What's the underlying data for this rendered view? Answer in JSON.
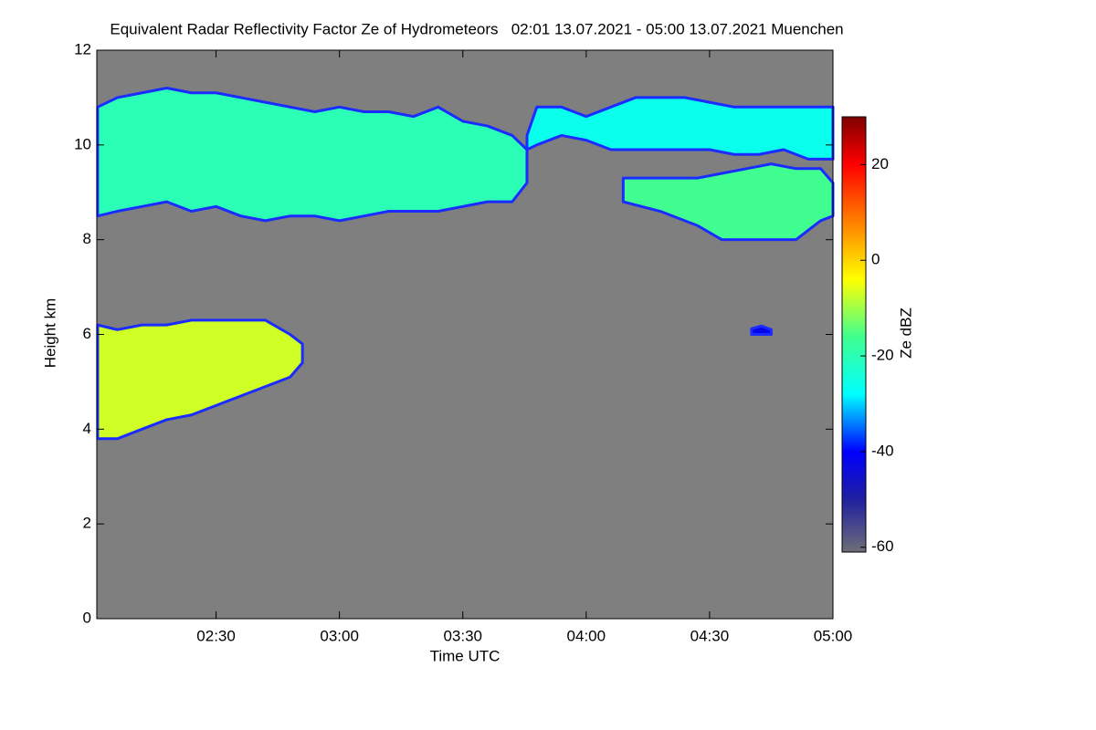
{
  "chart_data": {
    "type": "heatmap",
    "title": "Equivalent Radar Reflectivity Factor Ze of Hydrometeors   02:01 13.07.2021 - 05:00 13.07.2021 Muenchen",
    "x_label": "Time UTC",
    "y_label": "Height km",
    "colorbar_label": "Ze dBZ",
    "xlim": [
      2.0167,
      5.0
    ],
    "xticks": [
      {
        "value": 2.5,
        "label": "02:30"
      },
      {
        "value": 3.0,
        "label": "03:00"
      },
      {
        "value": 3.5,
        "label": "03:30"
      },
      {
        "value": 4.0,
        "label": "04:00"
      },
      {
        "value": 4.5,
        "label": "04:30"
      },
      {
        "value": 5.0,
        "label": "05:00"
      }
    ],
    "ylim": [
      0,
      12
    ],
    "yticks": [
      0,
      2,
      4,
      6,
      8,
      10,
      12
    ],
    "clim": [
      -61,
      30
    ],
    "cticks": [
      -60,
      -40,
      -20,
      0,
      20
    ],
    "colorscale": {
      "values": [
        -61,
        -50,
        -40,
        -28,
        -16,
        -4,
        8,
        20,
        30
      ],
      "colors": [
        "#6e6e78",
        "#2020a0",
        "#0000ff",
        "#00ffff",
        "#40ff90",
        "#ffff00",
        "#ff8000",
        "#ff0000",
        "#800000"
      ]
    },
    "background": "#7f7f7f",
    "regions": [
      {
        "x": [
          2.02,
          2.1,
          2.2,
          2.3,
          2.4,
          2.5,
          2.6,
          2.7,
          2.8,
          2.9,
          3.0,
          3.1,
          3.2,
          3.3,
          3.4,
          3.5,
          3.6,
          3.7,
          3.76
        ],
        "base": [
          8.5,
          8.6,
          8.7,
          8.8,
          8.6,
          8.7,
          8.5,
          8.4,
          8.5,
          8.5,
          8.4,
          8.5,
          8.6,
          8.6,
          8.6,
          8.7,
          8.8,
          8.8,
          9.2
        ],
        "top": [
          10.8,
          11.0,
          11.1,
          11.2,
          11.1,
          11.1,
          11.0,
          10.9,
          10.8,
          10.7,
          10.8,
          10.7,
          10.7,
          10.6,
          10.8,
          10.5,
          10.4,
          10.2,
          9.9
        ],
        "ze": -20
      },
      {
        "x": [
          3.76,
          3.8,
          3.9,
          4.0,
          4.1,
          4.2,
          4.3,
          4.4,
          4.5,
          4.6,
          4.7,
          4.8,
          4.9,
          5.0
        ],
        "base": [
          9.9,
          10.0,
          10.2,
          10.1,
          9.9,
          9.9,
          9.9,
          9.9,
          9.9,
          9.8,
          9.8,
          9.9,
          9.7,
          9.7
        ],
        "top": [
          10.2,
          10.8,
          10.8,
          10.6,
          10.8,
          11.0,
          11.0,
          11.0,
          10.9,
          10.8,
          10.8,
          10.8,
          10.8,
          10.8
        ],
        "ze": -26
      },
      {
        "x": [
          4.15,
          4.3,
          4.45,
          4.55,
          4.65,
          4.75,
          4.85,
          4.95,
          5.0
        ],
        "base": [
          8.8,
          8.6,
          8.3,
          8.0,
          8.0,
          8.0,
          8.0,
          8.4,
          8.5
        ],
        "top": [
          9.3,
          9.3,
          9.3,
          9.4,
          9.5,
          9.6,
          9.5,
          9.5,
          9.2
        ],
        "ze": -16
      },
      {
        "x": [
          2.02,
          2.1,
          2.2,
          2.3,
          2.4,
          2.5,
          2.6,
          2.7,
          2.8,
          2.85
        ],
        "base": [
          3.8,
          3.8,
          4.0,
          4.2,
          4.3,
          4.5,
          4.7,
          4.9,
          5.1,
          5.4
        ],
        "top": [
          6.2,
          6.1,
          6.2,
          6.2,
          6.3,
          6.3,
          6.3,
          6.3,
          6.0,
          5.8
        ],
        "ze": -7
      },
      {
        "x": [
          4.67,
          4.71,
          4.75
        ],
        "base": [
          6.0,
          6.0,
          6.0
        ],
        "top": [
          6.12,
          6.18,
          6.1
        ],
        "ze": -42
      }
    ]
  }
}
